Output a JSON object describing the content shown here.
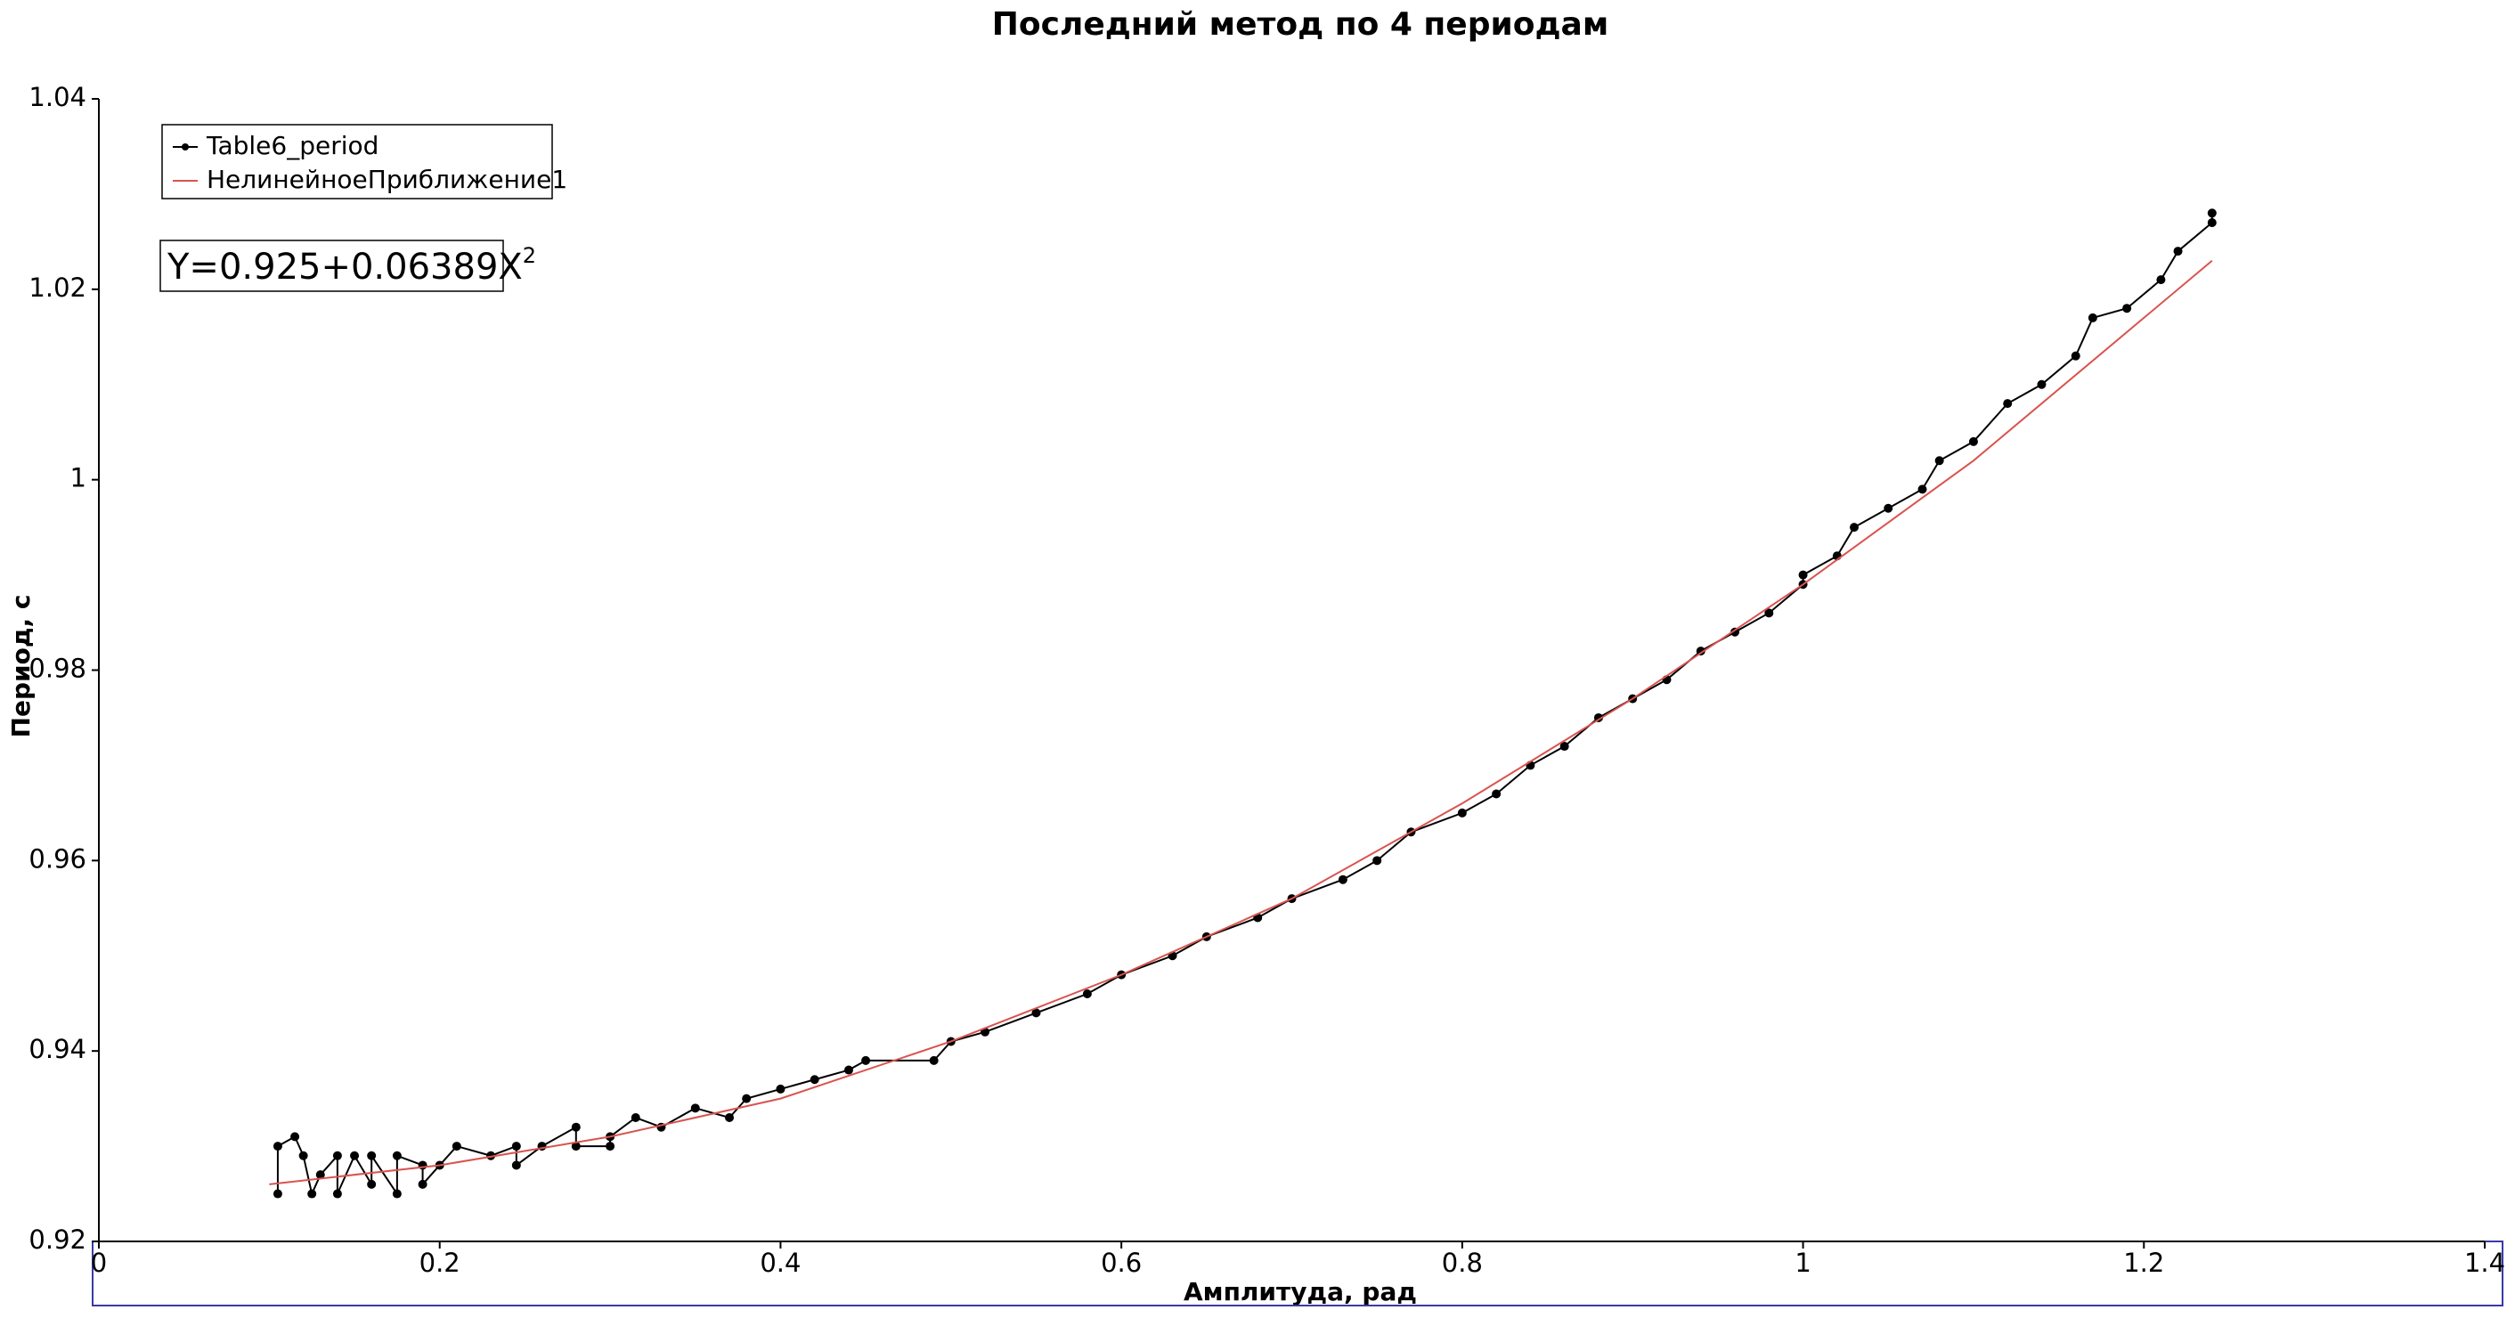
{
  "chart_data": {
    "type": "line",
    "title": "Последний метод по 4 периодам",
    "x_label": "Амплитуда, рад",
    "y_label": "Период, с",
    "xlim": [
      0,
      1.4
    ],
    "xticks": [
      0,
      0.2,
      0.4,
      0.6,
      0.8,
      1,
      1.2,
      1.4
    ],
    "ylim": [
      0.92,
      1.04
    ],
    "yticks": [
      0.92,
      0.94,
      0.96,
      0.98,
      1,
      1.02,
      1.04
    ],
    "legend": "upper left",
    "annotation": {
      "text": "Y=0.925+0.06389X",
      "superscript": "2"
    },
    "series": [
      {
        "name": "Table6_period",
        "color": "#000000",
        "markers": true,
        "x": [
          0.105,
          0.105,
          0.115,
          0.12,
          0.125,
          0.13,
          0.14,
          0.14,
          0.15,
          0.16,
          0.16,
          0.175,
          0.175,
          0.19,
          0.19,
          0.2,
          0.21,
          0.23,
          0.245,
          0.245,
          0.26,
          0.28,
          0.28,
          0.3,
          0.3,
          0.315,
          0.33,
          0.35,
          0.37,
          0.38,
          0.4,
          0.42,
          0.44,
          0.45,
          0.49,
          0.5,
          0.52,
          0.55,
          0.58,
          0.6,
          0.63,
          0.65,
          0.68,
          0.7,
          0.73,
          0.75,
          0.77,
          0.8,
          0.82,
          0.84,
          0.86,
          0.88,
          0.9,
          0.92,
          0.94,
          0.96,
          0.98,
          1.0,
          1.0,
          1.02,
          1.03,
          1.05,
          1.07,
          1.08,
          1.1,
          1.12,
          1.14,
          1.16,
          1.17,
          1.19,
          1.21,
          1.22,
          1.24,
          1.24
        ],
        "values": [
          0.925,
          0.93,
          0.931,
          0.929,
          0.925,
          0.927,
          0.929,
          0.925,
          0.929,
          0.926,
          0.929,
          0.925,
          0.929,
          0.928,
          0.926,
          0.928,
          0.93,
          0.929,
          0.93,
          0.928,
          0.93,
          0.932,
          0.93,
          0.93,
          0.931,
          0.933,
          0.932,
          0.934,
          0.933,
          0.935,
          0.936,
          0.937,
          0.938,
          0.939,
          0.939,
          0.941,
          0.942,
          0.944,
          0.946,
          0.948,
          0.95,
          0.952,
          0.954,
          0.956,
          0.958,
          0.96,
          0.963,
          0.965,
          0.967,
          0.97,
          0.972,
          0.975,
          0.977,
          0.979,
          0.982,
          0.984,
          0.986,
          0.989,
          0.99,
          0.992,
          0.995,
          0.997,
          0.999,
          1.002,
          1.004,
          1.008,
          1.01,
          1.013,
          1.017,
          1.018,
          1.021,
          1.024,
          1.027,
          1.028
        ]
      },
      {
        "name": "НелинейноеПриближение1",
        "color": "#d9534f",
        "markers": false,
        "x": [
          0.1,
          0.2,
          0.3,
          0.4,
          0.5,
          0.6,
          0.7,
          0.8,
          0.9,
          1.0,
          1.1,
          1.2,
          1.24
        ],
        "values": [
          0.926,
          0.928,
          0.931,
          0.935,
          0.941,
          0.948,
          0.956,
          0.966,
          0.977,
          0.989,
          1.002,
          1.017,
          1.023
        ]
      }
    ]
  }
}
